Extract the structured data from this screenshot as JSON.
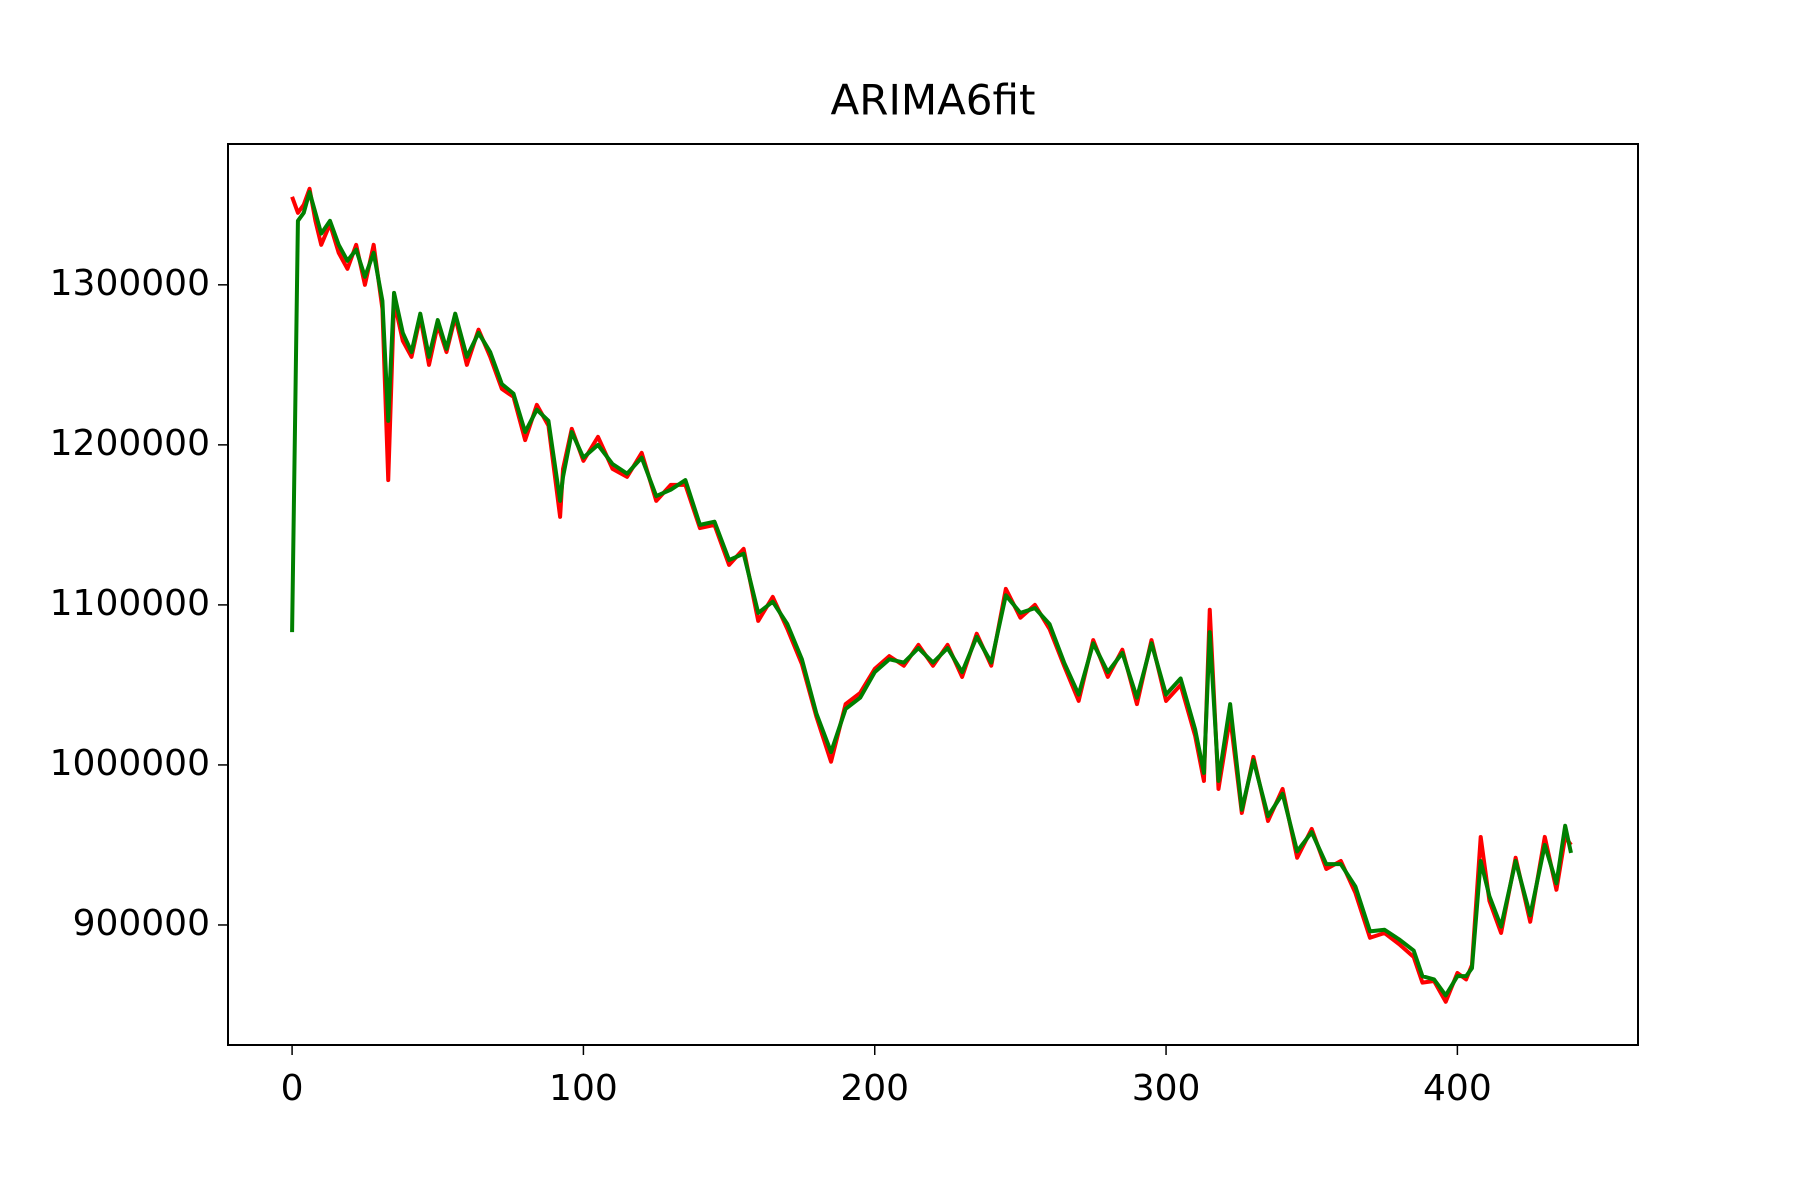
{
  "chart_data": {
    "type": "line",
    "title": "ARIMA6fit",
    "x": [
      0,
      2,
      4,
      6,
      8,
      10,
      13,
      16,
      19,
      22,
      25,
      28,
      31,
      33,
      35,
      38,
      41,
      44,
      47,
      50,
      53,
      56,
      60,
      64,
      68,
      72,
      76,
      80,
      84,
      88,
      92,
      93,
      96,
      100,
      105,
      110,
      115,
      120,
      125,
      130,
      135,
      140,
      145,
      150,
      155,
      160,
      165,
      170,
      175,
      180,
      185,
      190,
      195,
      200,
      205,
      210,
      215,
      220,
      225,
      230,
      235,
      240,
      245,
      250,
      255,
      260,
      265,
      270,
      275,
      280,
      285,
      290,
      295,
      300,
      305,
      310,
      313,
      315,
      318,
      322,
      326,
      330,
      335,
      340,
      345,
      350,
      355,
      360,
      365,
      370,
      375,
      380,
      385,
      388,
      392,
      396,
      400,
      403,
      405,
      408,
      411,
      415,
      420,
      425,
      430,
      434,
      437,
      439
    ],
    "series": [
      {
        "color": "#ff0000",
        "values": [
          1355000,
          1345000,
          1350000,
          1360000,
          1340000,
          1325000,
          1338000,
          1320000,
          1310000,
          1325000,
          1300000,
          1325000,
          1285000,
          1178000,
          1290000,
          1265000,
          1255000,
          1280000,
          1250000,
          1275000,
          1258000,
          1280000,
          1250000,
          1272000,
          1255000,
          1235000,
          1230000,
          1203000,
          1225000,
          1212000,
          1155000,
          1185000,
          1210000,
          1190000,
          1205000,
          1185000,
          1180000,
          1195000,
          1165000,
          1175000,
          1175000,
          1148000,
          1150000,
          1125000,
          1135000,
          1090000,
          1105000,
          1085000,
          1063000,
          1030000,
          1002000,
          1038000,
          1045000,
          1060000,
          1068000,
          1062000,
          1075000,
          1062000,
          1075000,
          1055000,
          1082000,
          1062000,
          1110000,
          1092000,
          1100000,
          1085000,
          1062000,
          1040000,
          1078000,
          1055000,
          1072000,
          1038000,
          1078000,
          1040000,
          1050000,
          1018000,
          990000,
          1097000,
          985000,
          1030000,
          970000,
          1005000,
          965000,
          985000,
          942000,
          960000,
          935000,
          940000,
          920000,
          892000,
          895000,
          888000,
          880000,
          864000,
          865000,
          852000,
          870000,
          866000,
          875000,
          955000,
          915000,
          895000,
          942000,
          902000,
          955000,
          922000,
          955000,
          950000
        ]
      },
      {
        "color": "#007f00",
        "values": [
          1083000,
          1340000,
          1345000,
          1358000,
          1345000,
          1332000,
          1340000,
          1325000,
          1315000,
          1322000,
          1305000,
          1320000,
          1290000,
          1215000,
          1295000,
          1270000,
          1258000,
          1282000,
          1255000,
          1278000,
          1260000,
          1282000,
          1255000,
          1270000,
          1258000,
          1238000,
          1232000,
          1208000,
          1222000,
          1215000,
          1165000,
          1180000,
          1208000,
          1192000,
          1200000,
          1188000,
          1182000,
          1192000,
          1168000,
          1172000,
          1178000,
          1150000,
          1152000,
          1128000,
          1132000,
          1095000,
          1102000,
          1088000,
          1066000,
          1032000,
          1008000,
          1035000,
          1042000,
          1058000,
          1066000,
          1064000,
          1073000,
          1064000,
          1073000,
          1058000,
          1080000,
          1064000,
          1106000,
          1095000,
          1098000,
          1088000,
          1064000,
          1044000,
          1076000,
          1058000,
          1070000,
          1042000,
          1076000,
          1044000,
          1054000,
          1022000,
          995000,
          1083000,
          990000,
          1038000,
          972000,
          1003000,
          968000,
          982000,
          946000,
          958000,
          938000,
          938000,
          924000,
          896000,
          897000,
          891000,
          884000,
          868000,
          866000,
          856000,
          868000,
          868000,
          873000,
          940000,
          918000,
          899000,
          940000,
          906000,
          950000,
          926000,
          962000,
          945000
        ]
      }
    ],
    "xlim": [
      -22,
      462
    ],
    "ylim": [
      825000,
      1388000
    ],
    "xticks": [
      0,
      100,
      200,
      300,
      400
    ],
    "yticks": [
      900000,
      1000000,
      1100000,
      1200000,
      1300000
    ]
  }
}
